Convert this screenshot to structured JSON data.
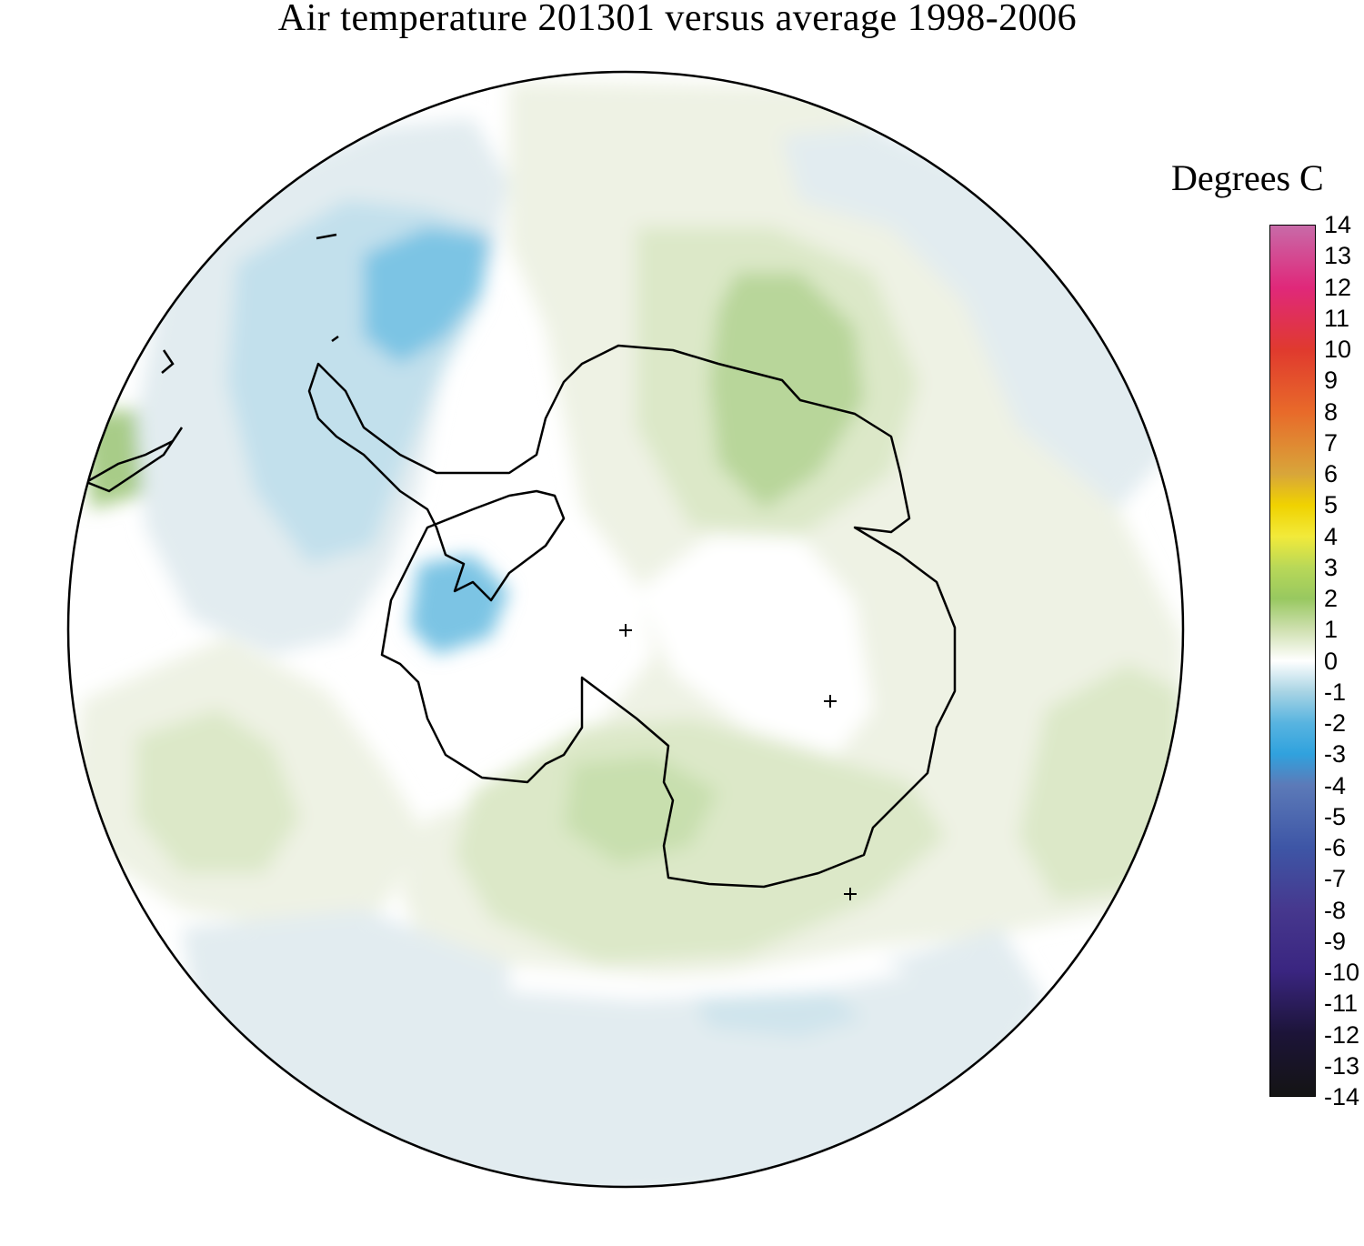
{
  "title": "Air temperature 201301 versus average 1998-2006",
  "colorbar": {
    "label": "Degrees C",
    "ticks": [
      "14",
      "13",
      "12",
      "11",
      "10",
      "9",
      "8",
      "7",
      "6",
      "5",
      "4",
      "3",
      "2",
      "1",
      "0",
      "-1",
      "-2",
      "-3",
      "-4",
      "-5",
      "-6",
      "-7",
      "-8",
      "-9",
      "-10",
      "-11",
      "-12",
      "-13",
      "-14"
    ],
    "range": [
      -14,
      14
    ],
    "colors": {
      "14": "#c86aa8",
      "12": "#e0287a",
      "10": "#e03a2e",
      "8": "#e86a2a",
      "6": "#d8a63a",
      "5": "#f0d200",
      "4": "#f2ea3a",
      "3": "#b8d858",
      "2": "#98c860",
      "1": "#cfe0b0",
      "0": "#ffffff",
      "-1": "#a8d4e4",
      "-2": "#58b4e0",
      "-3": "#30a2de",
      "-4": "#5c7ab8",
      "-6": "#3e56a6",
      "-8": "#46388e",
      "-10": "#3a2580",
      "-12": "#1c1438",
      "-14": "#141414"
    }
  },
  "map": {
    "projection": "south-polar-stereographic",
    "markers": [
      "+",
      "+",
      "+"
    ],
    "anomaly_colors": {
      "warm_light": "#eef2e4",
      "warm_mid": "#dce8c8",
      "warm_strong": "#b8d69a",
      "cold_light": "#e2ecf0",
      "cold_mid": "#c2e0ec",
      "cold_strong": "#7cc4e4",
      "coast": "#000000"
    }
  }
}
